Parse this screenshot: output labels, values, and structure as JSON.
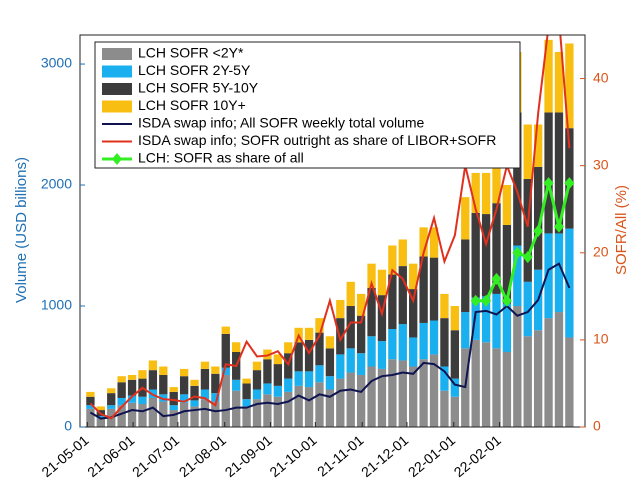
{
  "chart_data": {
    "type": "bar",
    "y_label": "Volume (USD billions)",
    "y2_label": "SOFR/All (%)",
    "categories": [
      null,
      null,
      null,
      null,
      null,
      null,
      null,
      null,
      null,
      null,
      null,
      null,
      null,
      null,
      null,
      null,
      null,
      null,
      null,
      null,
      null,
      null,
      null,
      null,
      null,
      null,
      null,
      null,
      null,
      null,
      null,
      null,
      null,
      null,
      null,
      null,
      null,
      null,
      null,
      null,
      null,
      null,
      null,
      null,
      null,
      null,
      null
    ],
    "xlim": [
      -1,
      47.5
    ],
    "xticks": [
      {
        "value": -0.3,
        "label": "21-05-01"
      },
      {
        "value": 4.1,
        "label": "21-06-01"
      },
      {
        "value": 8.4,
        "label": "21-07-01"
      },
      {
        "value": 12.9,
        "label": "21-08-01"
      },
      {
        "value": 17.3,
        "label": "21-09-01"
      },
      {
        "value": 21.6,
        "label": "21-10-01"
      },
      {
        "value": 26.1,
        "label": "21-11-01"
      },
      {
        "value": 30.4,
        "label": "21-12-01"
      },
      {
        "value": 34.9,
        "label": "22-01-01"
      },
      {
        "value": 39.3,
        "label": "22-02-01"
      }
    ],
    "ylim": [
      0,
      3240
    ],
    "yticks": [
      0,
      1000,
      2000,
      3000
    ],
    "y2lim": [
      0,
      45
    ],
    "y2ticks": [
      0,
      10,
      20,
      30,
      40
    ],
    "stacked": true,
    "series": [
      {
        "name": "LCH SOFR <2Y*",
        "color": "#8c8c8c",
        "values": [
          150,
          70,
          150,
          180,
          200,
          190,
          240,
          210,
          140,
          200,
          170,
          230,
          210,
          430,
          300,
          170,
          230,
          270,
          250,
          290,
          340,
          330,
          370,
          310,
          400,
          450,
          430,
          500,
          480,
          560,
          550,
          500,
          560,
          600,
          300,
          250,
          650,
          720,
          700,
          650,
          620,
          1000,
          750,
          800,
          900,
          950,
          740
        ]
      },
      {
        "name": "LCH SOFR 2Y-5Y",
        "color": "#1ab0f0",
        "values": [
          30,
          20,
          30,
          60,
          60,
          60,
          70,
          60,
          40,
          70,
          50,
          80,
          70,
          60,
          90,
          60,
          80,
          90,
          90,
          110,
          120,
          130,
          140,
          110,
          200,
          200,
          180,
          250,
          230,
          250,
          300,
          240,
          300,
          280,
          200,
          150,
          300,
          350,
          380,
          450,
          400,
          500,
          450,
          500,
          700,
          650,
          900
        ]
      },
      {
        "name": "LCH SOFR 5Y-10Y",
        "color": "#3c3c3c",
        "values": [
          70,
          50,
          100,
          130,
          130,
          150,
          160,
          160,
          110,
          150,
          120,
          170,
          160,
          280,
          230,
          130,
          160,
          200,
          180,
          210,
          240,
          260,
          270,
          230,
          300,
          350,
          310,
          400,
          380,
          450,
          480,
          400,
          550,
          520,
          400,
          400,
          600,
          700,
          680,
          750,
          650,
          1100,
          850,
          850,
          1000,
          1000,
          830
        ]
      },
      {
        "name": "LCH SOFR 10Y+",
        "color": "#f8bf12",
        "values": [
          40,
          30,
          40,
          50,
          40,
          70,
          80,
          70,
          40,
          60,
          50,
          60,
          60,
          60,
          80,
          40,
          70,
          80,
          80,
          90,
          120,
          100,
          120,
          100,
          150,
          200,
          180,
          200,
          210,
          240,
          220,
          210,
          240,
          250,
          200,
          200,
          350,
          330,
          340,
          350,
          330,
          500,
          450,
          350,
          600,
          500,
          700
        ]
      },
      {
        "name": "ISDA swap info; All SOFR weekly total volume",
        "type": "line",
        "color": "#0f1450",
        "values": [
          120,
          70,
          80,
          110,
          140,
          130,
          160,
          90,
          100,
          130,
          140,
          150,
          130,
          140,
          160,
          160,
          190,
          200,
          190,
          210,
          260,
          220,
          270,
          250,
          300,
          310,
          290,
          380,
          420,
          430,
          450,
          440,
          530,
          520,
          460,
          350,
          330,
          950,
          960,
          930,
          1000,
          920,
          950,
          1050,
          1300,
          1350,
          1150
        ]
      },
      {
        "name": "ISDA swap info; SOFR outright as share of LIBOR+SOFR",
        "type": "line",
        "axis": "y2",
        "color": "#e0301e",
        "values": [
          2.7,
          1.5,
          1.0,
          2.3,
          3.5,
          4.5,
          3.7,
          3.2,
          3.1,
          2.9,
          3.5,
          3.3,
          2.5,
          7.2,
          7,
          9.8,
          8.1,
          8.2,
          8.7,
          7.2,
          10.5,
          8.5,
          10.5,
          14.5,
          10,
          12,
          12,
          16.5,
          13,
          18,
          17,
          14.5,
          20,
          24,
          19,
          22,
          30,
          25,
          21,
          25,
          30,
          27,
          23,
          36,
          46,
          47,
          32
        ]
      },
      {
        "name": "LCH: SOFR as share of all",
        "type": "line",
        "axis": "y2",
        "marker": "diamond",
        "color": "#33ee22",
        "values": [
          null,
          null,
          null,
          null,
          null,
          null,
          null,
          null,
          null,
          null,
          null,
          null,
          null,
          null,
          null,
          null,
          null,
          null,
          null,
          null,
          null,
          null,
          null,
          null,
          null,
          null,
          null,
          null,
          null,
          null,
          null,
          null,
          null,
          null,
          null,
          null,
          null,
          14.5,
          14.5,
          17,
          14.5,
          20,
          19.5,
          22.5,
          28,
          23,
          28
        ]
      }
    ]
  }
}
